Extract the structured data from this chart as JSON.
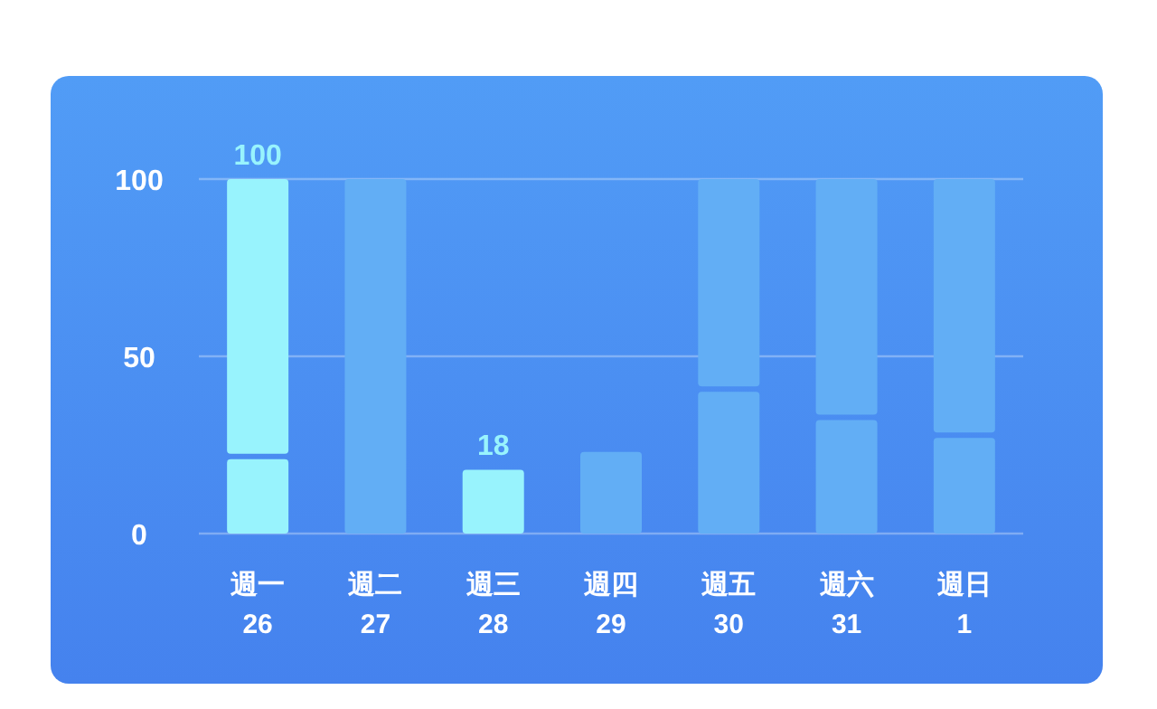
{
  "chart_data": {
    "type": "bar",
    "stacked": true,
    "categories": [
      "週一\n26",
      "週二\n27",
      "週三\n28",
      "週四\n29",
      "週五\n30",
      "週六\n31",
      "週日\n1"
    ],
    "series": [
      {
        "colors": [
          "#98f3fd",
          null,
          "#98f3fd",
          "#62aef5",
          "#62aef5",
          "#62aef5",
          "#62aef5"
        ],
        "values": [
          21,
          null,
          18,
          23,
          40,
          32,
          27
        ]
      },
      {
        "colors": [
          "#98f3fd",
          "#62aef5",
          null,
          null,
          "#62aef5",
          "#62aef5",
          "#62aef5"
        ],
        "values": [
          79,
          100,
          null,
          null,
          60,
          68,
          73
        ]
      }
    ],
    "totals": [
      "100",
      null,
      "18",
      null,
      null,
      null,
      null
    ],
    "ylim": [
      0,
      100
    ],
    "yticks": [
      0,
      50,
      100
    ],
    "grid": "y"
  }
}
